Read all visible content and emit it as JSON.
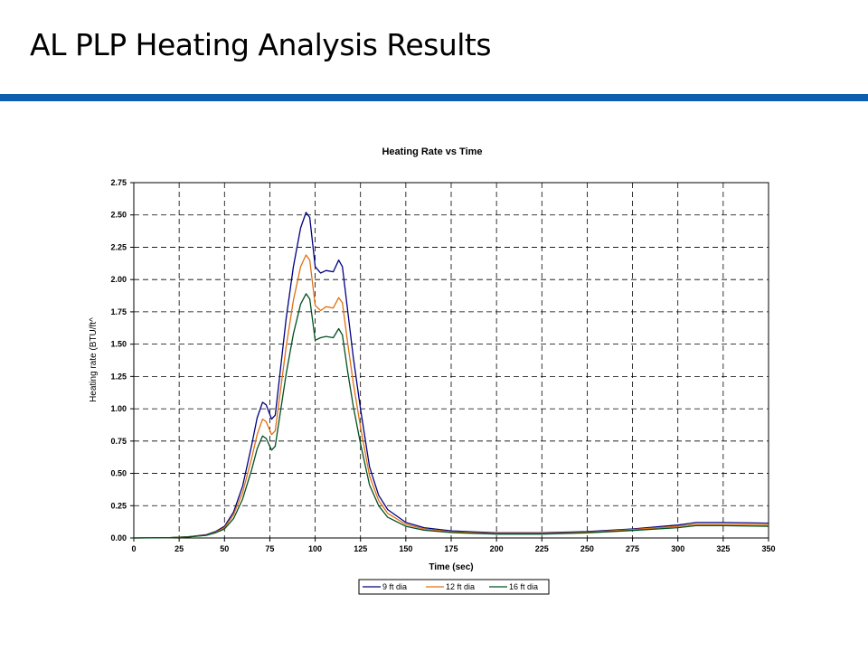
{
  "slide": {
    "title": "AL PLP Heating Analysis Results",
    "rule_color": "#0d5fae"
  },
  "chart_data": {
    "type": "line",
    "title": "Heating Rate vs Time",
    "xlabel": "Time (sec)",
    "ylabel": "Heating rate (BTU/ft^",
    "xlim": [
      0,
      350
    ],
    "ylim": [
      0,
      2.75
    ],
    "xticks": [
      "0",
      "25",
      "50",
      "75",
      "100",
      "125",
      "150",
      "175",
      "200",
      "225",
      "250",
      "275",
      "300",
      "325",
      "350"
    ],
    "yticks": [
      "0.00",
      "0.25",
      "0.50",
      "0.75",
      "1.00",
      "1.25",
      "1.50",
      "1.75",
      "2.00",
      "2.25",
      "2.50",
      "2.75"
    ],
    "grid": true,
    "legend_position": "bottom-center",
    "series": [
      {
        "name": "9 ft dia",
        "color": "#000080",
        "points": [
          [
            0,
            0
          ],
          [
            20,
            0.003
          ],
          [
            30,
            0.01
          ],
          [
            40,
            0.025
          ],
          [
            45,
            0.05
          ],
          [
            50,
            0.09
          ],
          [
            55,
            0.2
          ],
          [
            60,
            0.4
          ],
          [
            65,
            0.72
          ],
          [
            68,
            0.93
          ],
          [
            71,
            1.05
          ],
          [
            73,
            1.03
          ],
          [
            76,
            0.92
          ],
          [
            78,
            0.95
          ],
          [
            80,
            1.2
          ],
          [
            84,
            1.7
          ],
          [
            88,
            2.1
          ],
          [
            92,
            2.4
          ],
          [
            95,
            2.52
          ],
          [
            97,
            2.48
          ],
          [
            100,
            2.1
          ],
          [
            103,
            2.05
          ],
          [
            106,
            2.07
          ],
          [
            110,
            2.06
          ],
          [
            113,
            2.15
          ],
          [
            115,
            2.1
          ],
          [
            118,
            1.75
          ],
          [
            121,
            1.4
          ],
          [
            125,
            1.0
          ],
          [
            130,
            0.55
          ],
          [
            135,
            0.33
          ],
          [
            140,
            0.22
          ],
          [
            150,
            0.12
          ],
          [
            160,
            0.08
          ],
          [
            175,
            0.055
          ],
          [
            200,
            0.04
          ],
          [
            225,
            0.04
          ],
          [
            250,
            0.05
          ],
          [
            275,
            0.07
          ],
          [
            300,
            0.1
          ],
          [
            310,
            0.12
          ],
          [
            325,
            0.12
          ],
          [
            350,
            0.115
          ]
        ]
      },
      {
        "name": "12 ft dia",
        "color": "#e07010",
        "points": [
          [
            0,
            0
          ],
          [
            20,
            0.003
          ],
          [
            30,
            0.009
          ],
          [
            40,
            0.022
          ],
          [
            45,
            0.045
          ],
          [
            50,
            0.08
          ],
          [
            55,
            0.18
          ],
          [
            60,
            0.35
          ],
          [
            65,
            0.62
          ],
          [
            68,
            0.8
          ],
          [
            71,
            0.92
          ],
          [
            73,
            0.9
          ],
          [
            76,
            0.8
          ],
          [
            78,
            0.83
          ],
          [
            80,
            1.05
          ],
          [
            84,
            1.48
          ],
          [
            88,
            1.84
          ],
          [
            92,
            2.1
          ],
          [
            95,
            2.19
          ],
          [
            97,
            2.15
          ],
          [
            100,
            1.8
          ],
          [
            103,
            1.76
          ],
          [
            106,
            1.79
          ],
          [
            110,
            1.78
          ],
          [
            113,
            1.86
          ],
          [
            115,
            1.82
          ],
          [
            118,
            1.5
          ],
          [
            121,
            1.2
          ],
          [
            125,
            0.86
          ],
          [
            130,
            0.48
          ],
          [
            135,
            0.29
          ],
          [
            140,
            0.19
          ],
          [
            150,
            0.105
          ],
          [
            160,
            0.07
          ],
          [
            175,
            0.048
          ],
          [
            200,
            0.035
          ],
          [
            225,
            0.035
          ],
          [
            250,
            0.045
          ],
          [
            275,
            0.065
          ],
          [
            300,
            0.09
          ],
          [
            310,
            0.105
          ],
          [
            325,
            0.105
          ],
          [
            350,
            0.1
          ]
        ]
      },
      {
        "name": "16 ft dia",
        "color": "#005020",
        "points": [
          [
            0,
            0
          ],
          [
            20,
            0.002
          ],
          [
            30,
            0.008
          ],
          [
            40,
            0.02
          ],
          [
            45,
            0.04
          ],
          [
            50,
            0.07
          ],
          [
            55,
            0.15
          ],
          [
            60,
            0.3
          ],
          [
            65,
            0.53
          ],
          [
            68,
            0.69
          ],
          [
            71,
            0.79
          ],
          [
            73,
            0.77
          ],
          [
            76,
            0.68
          ],
          [
            78,
            0.71
          ],
          [
            80,
            0.9
          ],
          [
            84,
            1.27
          ],
          [
            88,
            1.58
          ],
          [
            92,
            1.81
          ],
          [
            95,
            1.89
          ],
          [
            97,
            1.85
          ],
          [
            100,
            1.53
          ],
          [
            103,
            1.55
          ],
          [
            106,
            1.56
          ],
          [
            110,
            1.55
          ],
          [
            113,
            1.62
          ],
          [
            115,
            1.57
          ],
          [
            118,
            1.28
          ],
          [
            121,
            1.02
          ],
          [
            125,
            0.73
          ],
          [
            130,
            0.41
          ],
          [
            135,
            0.25
          ],
          [
            140,
            0.16
          ],
          [
            150,
            0.09
          ],
          [
            160,
            0.06
          ],
          [
            175,
            0.042
          ],
          [
            200,
            0.03
          ],
          [
            225,
            0.03
          ],
          [
            250,
            0.04
          ],
          [
            275,
            0.058
          ],
          [
            300,
            0.08
          ],
          [
            310,
            0.095
          ],
          [
            325,
            0.095
          ],
          [
            350,
            0.09
          ]
        ]
      }
    ]
  }
}
